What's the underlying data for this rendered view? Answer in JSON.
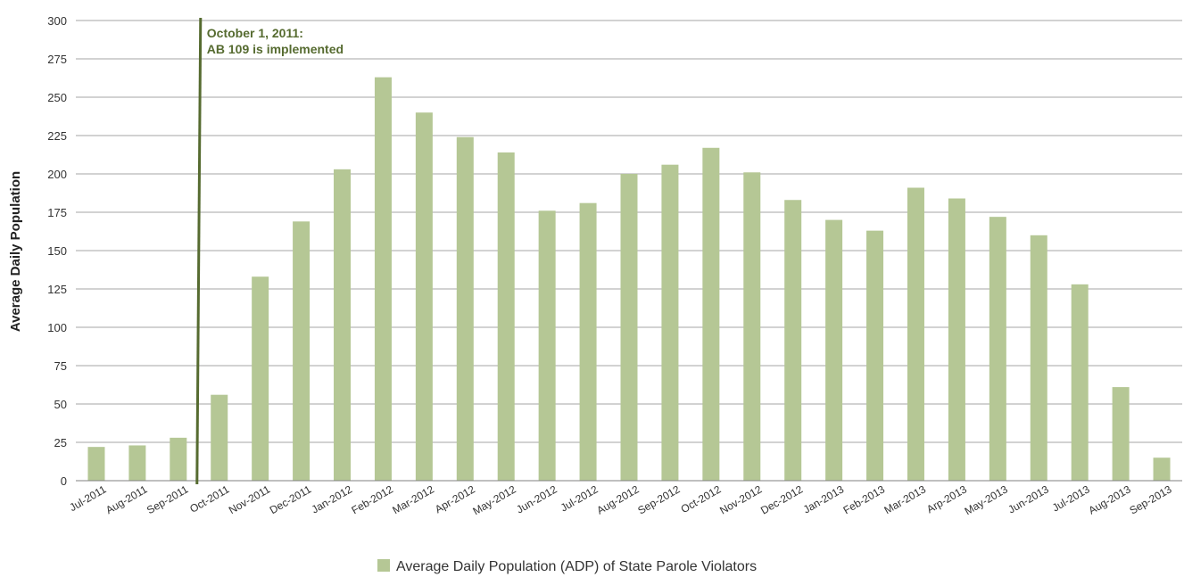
{
  "chart_data": {
    "type": "bar",
    "categories": [
      "Jul-2011",
      "Aug-2011",
      "Sep-2011",
      "Oct-2011",
      "Nov-2011",
      "Dec-2011",
      "Jan-2012",
      "Feb-2012",
      "Mar-2012",
      "Apr-2012",
      "May-2012",
      "Jun-2012",
      "Jul-2012",
      "Aug-2012",
      "Sep-2012",
      "Oct-2012",
      "Nov-2012",
      "Dec-2012",
      "Jan-2013",
      "Feb-2013",
      "Mar-2013",
      "Arp-2013",
      "May-2013",
      "Jun-2013",
      "Jul-2013",
      "Aug-2013",
      "Sep-2013"
    ],
    "series": [
      {
        "name": "Average Daily Population (ADP) of State Parole Violators",
        "color": "#b5c795",
        "values": [
          22,
          23,
          28,
          56,
          133,
          169,
          203,
          263,
          240,
          224,
          214,
          176,
          181,
          200,
          206,
          217,
          201,
          183,
          170,
          163,
          191,
          184,
          172,
          160,
          128,
          61,
          15
        ]
      }
    ],
    "ylabel": "Average Daily Population",
    "ylim": [
      0,
      300
    ],
    "yticks": [
      0,
      25,
      50,
      75,
      100,
      125,
      150,
      175,
      200,
      225,
      250,
      275,
      300
    ],
    "grid": true,
    "legend_position": "bottom-center",
    "annotation": {
      "line1": "October 1, 2011:",
      "line2": "AB 109 is implemented",
      "color": "#566b30",
      "after_category": "Sep-2011"
    }
  }
}
